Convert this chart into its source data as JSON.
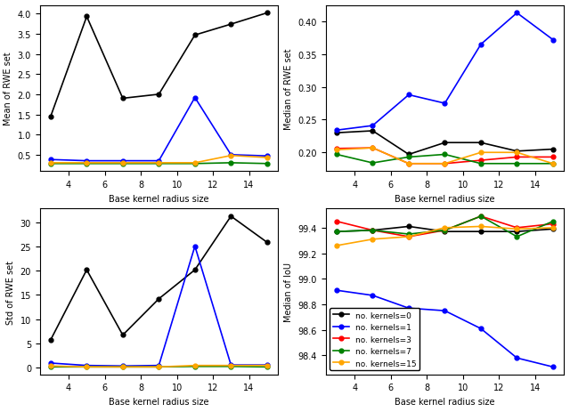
{
  "x": [
    3,
    5,
    7,
    9,
    11,
    13,
    15
  ],
  "mean_rwe": {
    "k0": [
      1.45,
      3.93,
      1.9,
      2.0,
      3.47,
      3.74,
      4.02
    ],
    "k1": [
      0.38,
      0.35,
      0.35,
      0.35,
      1.92,
      0.5,
      0.47
    ],
    "k3": [
      0.28,
      0.28,
      0.28,
      0.28,
      0.3,
      0.46,
      0.4
    ],
    "k7": [
      0.28,
      0.28,
      0.28,
      0.28,
      0.28,
      0.3,
      0.28
    ],
    "k15": [
      0.3,
      0.3,
      0.3,
      0.3,
      0.3,
      0.48,
      0.43
    ]
  },
  "median_rwe": {
    "k0": [
      0.23,
      0.233,
      0.197,
      0.215,
      0.215,
      0.202,
      0.205
    ],
    "k1": [
      0.234,
      0.241,
      0.288,
      0.275,
      0.365,
      0.413,
      0.372
    ],
    "k3": [
      0.206,
      0.207,
      0.183,
      0.183,
      0.188,
      0.193,
      0.193
    ],
    "k7": [
      0.197,
      0.184,
      0.193,
      0.197,
      0.183,
      0.183,
      0.183
    ],
    "k15": [
      0.204,
      0.207,
      0.183,
      0.183,
      0.2,
      0.2,
      0.183
    ]
  },
  "std_rwe": {
    "k0": [
      5.7,
      20.2,
      6.7,
      14.2,
      20.2,
      31.3,
      25.9
    ],
    "k1": [
      0.9,
      0.4,
      0.3,
      0.4,
      25.1,
      0.5,
      0.5
    ],
    "k3": [
      0.2,
      0.1,
      0.1,
      0.1,
      0.3,
      0.4,
      0.3
    ],
    "k7": [
      0.1,
      0.1,
      0.1,
      0.1,
      0.2,
      0.2,
      0.1
    ],
    "k15": [
      0.3,
      0.1,
      0.1,
      0.1,
      0.4,
      0.4,
      0.4
    ]
  },
  "median_iou": {
    "k0": [
      99.37,
      99.38,
      99.41,
      99.37,
      99.37,
      99.37,
      99.39
    ],
    "k1": [
      98.91,
      98.87,
      98.77,
      98.75,
      98.61,
      98.38,
      98.31
    ],
    "k3": [
      99.45,
      99.38,
      99.33,
      99.38,
      99.49,
      99.4,
      99.43
    ],
    "k7": [
      99.37,
      99.38,
      99.35,
      99.38,
      99.49,
      99.33,
      99.45
    ],
    "k15": [
      99.26,
      99.31,
      99.33,
      99.4,
      99.41,
      99.39,
      99.4
    ]
  },
  "colors": {
    "k0": "black",
    "k1": "blue",
    "k3": "red",
    "k7": "green",
    "k15": "orange"
  },
  "legend_labels": {
    "k0": "no. kernels=0",
    "k1": "no. kernels=1",
    "k3": "no. kernels=3",
    "k7": "no. kernels=7",
    "k15": "no. kernels=15"
  },
  "xlabel": "Base kernel radius size",
  "ylabel_mean": "Mean of RWE set",
  "ylabel_median_rwe": "Median of RWE set",
  "ylabel_std": "Std of RWE set",
  "ylabel_median_iou": "Median of IoU"
}
